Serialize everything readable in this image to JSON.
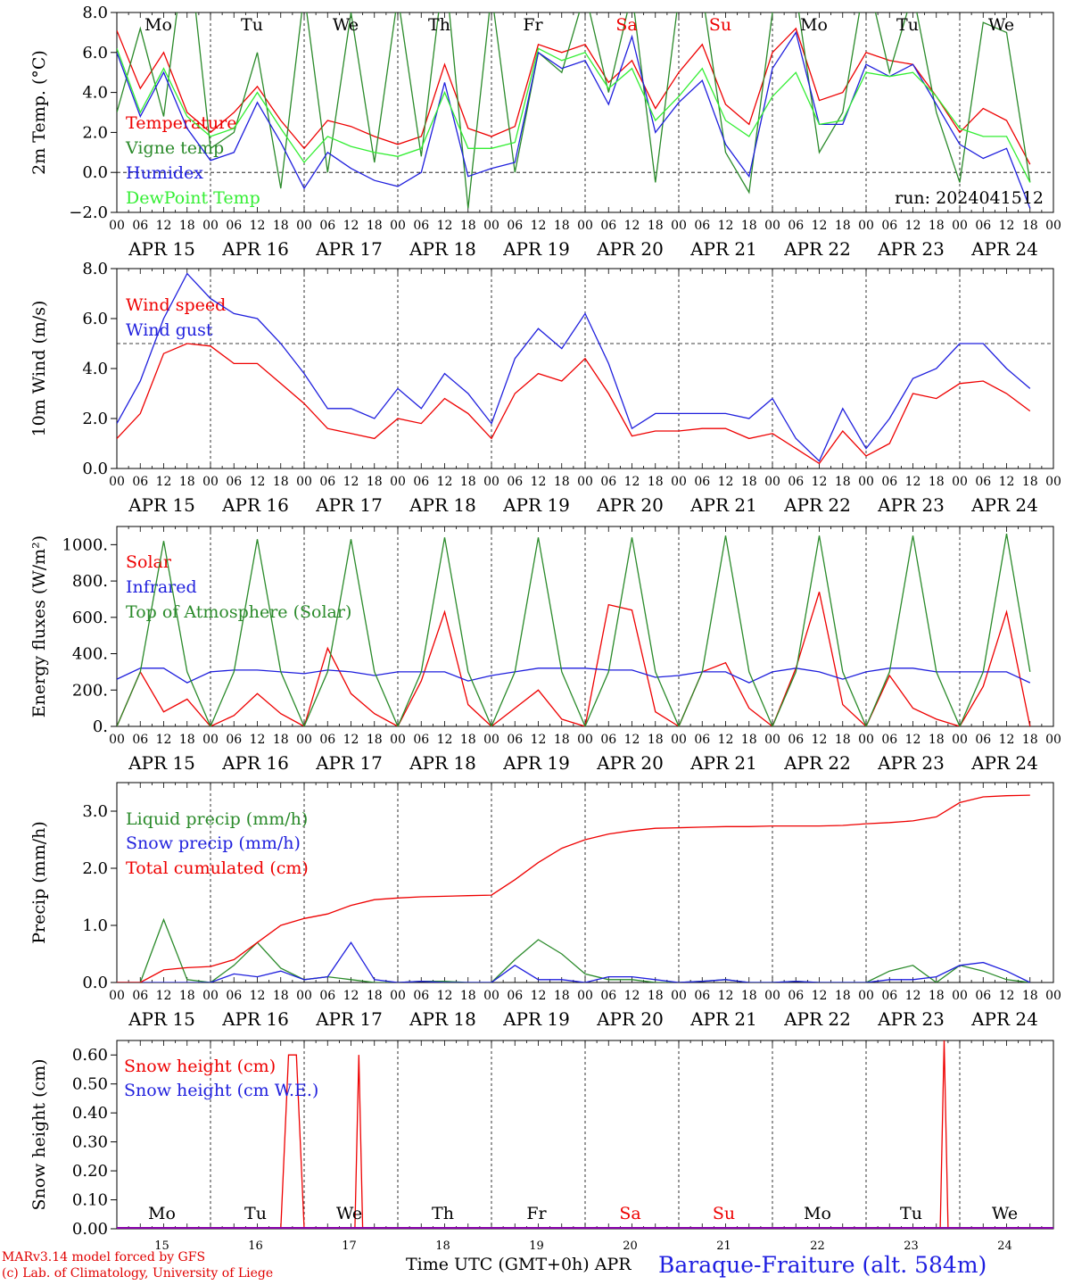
{
  "run_label": "run: 2024041512",
  "footer": {
    "credit_line1": "MARv3.14 model forced by GFS",
    "credit_line2": "(c) Lab. of Climatology, University of Liege",
    "x_title": "Time UTC (GMT+0h) APR",
    "station": "Baraque-Fraiture (alt. 584m)"
  },
  "colors": {
    "red": "#ee0000",
    "green": "#2a8a2a",
    "blue": "#1f1fdd",
    "lightgreen": "#33ee33",
    "purple": "#8800aa"
  },
  "days": [
    "APR 15",
    "APR 16",
    "APR 17",
    "APR 18",
    "APR 19",
    "APR 20",
    "APR 21",
    "APR 22",
    "APR 23",
    "APR 24"
  ],
  "day_numbers": [
    "15",
    "16",
    "17",
    "18",
    "19",
    "20",
    "21",
    "22",
    "23",
    "24"
  ],
  "weekdays": [
    {
      "label": "Mo",
      "color": "#000000"
    },
    {
      "label": "Tu",
      "color": "#000000"
    },
    {
      "label": "We",
      "color": "#000000"
    },
    {
      "label": "Th",
      "color": "#000000"
    },
    {
      "label": "Fr",
      "color": "#000000"
    },
    {
      "label": "Sa",
      "color": "#ee0000"
    },
    {
      "label": "Su",
      "color": "#ee0000"
    },
    {
      "label": "Mo",
      "color": "#000000"
    },
    {
      "label": "Tu",
      "color": "#000000"
    },
    {
      "label": "We",
      "color": "#000000"
    }
  ],
  "hour_ticks": [
    "00",
    "06",
    "12",
    "18"
  ],
  "chart_data": [
    {
      "type": "line",
      "ylabel": "2m Temp. (°C)",
      "ylim": [
        -2,
        8
      ],
      "yticks": [
        -2,
        0,
        2,
        4,
        6,
        8
      ],
      "ytick_labels": [
        "−2.0",
        "0.0",
        "2.0",
        "4.0",
        "6.0",
        "8.0"
      ],
      "ref_line": 0,
      "x_hours": [
        0,
        6,
        12,
        18,
        24,
        30,
        36,
        42,
        48,
        54,
        60,
        66,
        72,
        78,
        84,
        90,
        96,
        102,
        108,
        114,
        120,
        126,
        132,
        138,
        144,
        150,
        156,
        162,
        168,
        174,
        180,
        186,
        192,
        198,
        204,
        210,
        216,
        222,
        228,
        234
      ],
      "series": [
        {
          "name": "Temperature",
          "color": "#ee0000",
          "values": [
            7.1,
            4.2,
            6.0,
            3.0,
            2.0,
            3.0,
            4.3,
            2.6,
            1.2,
            2.6,
            2.3,
            1.8,
            1.4,
            1.8,
            5.4,
            2.2,
            1.8,
            2.3,
            6.4,
            6.0,
            6.4,
            4.5,
            5.6,
            3.2,
            5.0,
            6.4,
            3.4,
            2.4,
            6.0,
            7.2,
            3.6,
            4.0,
            6.0,
            5.6,
            5.4,
            3.8,
            2.0,
            3.2,
            2.6,
            0.4
          ]
        },
        {
          "name": "Vigne temp",
          "color": "#2a8a2a",
          "values": [
            3.0,
            7.2,
            2.8,
            12.0,
            1.2,
            2.0,
            6.0,
            -0.8,
            9.0,
            0.0,
            8.0,
            0.5,
            8.8,
            0.8,
            10.5,
            -1.8,
            9.0,
            0.0,
            6.0,
            5.0,
            9.0,
            4.0,
            9.0,
            -0.5,
            8.8,
            9.0,
            1.0,
            -1.0,
            8.0,
            9.0,
            1.0,
            3.0,
            10.0,
            5.0,
            9.0,
            3.0,
            -0.5,
            7.5,
            7.0,
            -0.5
          ]
        },
        {
          "name": "Humidex",
          "color": "#1f1fdd",
          "values": [
            6.0,
            2.8,
            5.0,
            2.2,
            0.6,
            1.0,
            3.5,
            1.5,
            -0.8,
            1.0,
            0.2,
            -0.4,
            -0.7,
            0.0,
            4.5,
            -0.2,
            0.2,
            0.5,
            6.0,
            5.2,
            5.6,
            3.4,
            6.8,
            2.0,
            3.5,
            4.6,
            1.4,
            -0.2,
            5.2,
            7.0,
            2.4,
            2.4,
            5.4,
            4.8,
            5.4,
            3.4,
            1.4,
            0.7,
            1.2,
            -1.8
          ]
        },
        {
          "name": "DewPoint Temp",
          "color": "#33ee33",
          "values": [
            6.2,
            3.0,
            5.2,
            2.8,
            1.8,
            2.2,
            4.0,
            2.2,
            0.5,
            1.8,
            1.3,
            1.0,
            0.8,
            1.2,
            4.0,
            1.2,
            1.2,
            1.5,
            6.2,
            5.6,
            6.0,
            4.2,
            5.2,
            2.6,
            3.8,
            5.2,
            2.6,
            1.8,
            3.8,
            5.0,
            2.4,
            2.6,
            5.0,
            4.8,
            5.0,
            3.8,
            2.2,
            1.8,
            1.8,
            -0.5
          ]
        }
      ]
    },
    {
      "type": "line",
      "ylabel": "10m Wind (m/s)",
      "ylim": [
        0,
        8
      ],
      "yticks": [
        0,
        2,
        4,
        6,
        8
      ],
      "ytick_labels": [
        "0.0",
        "2.0",
        "4.0",
        "6.0",
        "8.0"
      ],
      "ref_line": 5,
      "x_hours": [
        0,
        6,
        12,
        18,
        24,
        30,
        36,
        42,
        48,
        54,
        60,
        66,
        72,
        78,
        84,
        90,
        96,
        102,
        108,
        114,
        120,
        126,
        132,
        138,
        144,
        150,
        156,
        162,
        168,
        174,
        180,
        186,
        192,
        198,
        204,
        210,
        216,
        222,
        228,
        234
      ],
      "series": [
        {
          "name": "Wind speed",
          "color": "#ee0000",
          "values": [
            1.2,
            2.2,
            4.6,
            5.0,
            4.9,
            4.2,
            4.2,
            3.4,
            2.6,
            1.6,
            1.4,
            1.2,
            2.0,
            1.8,
            2.8,
            2.2,
            1.2,
            3.0,
            3.8,
            3.5,
            4.4,
            3.0,
            1.3,
            1.5,
            1.5,
            1.6,
            1.6,
            1.2,
            1.4,
            0.8,
            0.2,
            1.5,
            0.5,
            1.0,
            3.0,
            2.8,
            3.4,
            3.5,
            3.0,
            2.3
          ]
        },
        {
          "name": "Wind gust",
          "color": "#1f1fdd",
          "values": [
            1.8,
            3.5,
            6.0,
            7.8,
            6.8,
            6.2,
            6.0,
            5.0,
            3.8,
            2.4,
            2.4,
            2.0,
            3.2,
            2.4,
            3.8,
            3.0,
            1.8,
            4.4,
            5.6,
            4.8,
            6.2,
            4.2,
            1.6,
            2.2,
            2.2,
            2.2,
            2.2,
            2.0,
            2.8,
            1.2,
            0.3,
            2.4,
            0.8,
            2.0,
            3.6,
            4.0,
            5.0,
            5.0,
            4.0,
            3.2
          ]
        }
      ]
    },
    {
      "type": "line",
      "ylabel": "Energy fluxes (W/m²)",
      "ylim": [
        0,
        1100
      ],
      "yticks": [
        0,
        200,
        400,
        600,
        800,
        1000
      ],
      "ytick_labels": [
        "0.",
        "200.",
        "400.",
        "600.",
        "800.",
        "1000."
      ],
      "x_hours": [
        0,
        6,
        12,
        18,
        24,
        30,
        36,
        42,
        48,
        54,
        60,
        66,
        72,
        78,
        84,
        90,
        96,
        102,
        108,
        114,
        120,
        126,
        132,
        138,
        144,
        150,
        156,
        162,
        168,
        174,
        180,
        186,
        192,
        198,
        204,
        210,
        216,
        222,
        228,
        234
      ],
      "series": [
        {
          "name": "Solar",
          "color": "#ee0000",
          "values": [
            0,
            300,
            80,
            150,
            0,
            60,
            180,
            70,
            0,
            430,
            180,
            70,
            0,
            250,
            630,
            120,
            0,
            100,
            200,
            40,
            0,
            670,
            640,
            80,
            0,
            300,
            350,
            100,
            0,
            320,
            740,
            120,
            0,
            280,
            100,
            40,
            0,
            220,
            630,
            0
          ]
        },
        {
          "name": "Infrared",
          "color": "#1f1fdd",
          "values": [
            260,
            320,
            320,
            240,
            300,
            310,
            310,
            300,
            290,
            310,
            300,
            280,
            300,
            300,
            300,
            250,
            280,
            300,
            320,
            320,
            320,
            310,
            310,
            270,
            280,
            300,
            300,
            240,
            300,
            320,
            300,
            260,
            300,
            320,
            320,
            300,
            300,
            300,
            300,
            240
          ]
        },
        {
          "name": "Top of Atmosphere (Solar)",
          "color": "#2a8a2a",
          "values": [
            0,
            300,
            1020,
            300,
            0,
            300,
            1030,
            300,
            0,
            300,
            1030,
            300,
            0,
            300,
            1040,
            300,
            0,
            300,
            1040,
            300,
            0,
            300,
            1040,
            300,
            0,
            300,
            1050,
            300,
            0,
            300,
            1050,
            300,
            0,
            300,
            1050,
            300,
            0,
            300,
            1060,
            300
          ]
        }
      ]
    },
    {
      "type": "line",
      "ylabel": "Precip (mm/h)",
      "ylim": [
        0,
        3.5
      ],
      "yticks": [
        0,
        1,
        2,
        3
      ],
      "ytick_labels": [
        "0.0",
        "1.0",
        "2.0",
        "3.0"
      ],
      "x_hours": [
        0,
        6,
        12,
        18,
        24,
        30,
        36,
        42,
        48,
        54,
        60,
        66,
        72,
        78,
        84,
        90,
        96,
        102,
        108,
        114,
        120,
        126,
        132,
        138,
        144,
        150,
        156,
        162,
        168,
        174,
        180,
        186,
        192,
        198,
        204,
        210,
        216,
        222,
        228,
        234
      ],
      "series": [
        {
          "name": "Liquid precip (mm/h)",
          "color": "#2a8a2a",
          "values": [
            0,
            0,
            1.1,
            0.05,
            0,
            0.3,
            0.7,
            0.25,
            0.05,
            0.1,
            0.05,
            0.0,
            0,
            0.02,
            0.02,
            0,
            0,
            0.4,
            0.75,
            0.5,
            0.15,
            0.05,
            0.05,
            0,
            0,
            0.02,
            0.05,
            0,
            0,
            0.02,
            0,
            0,
            0,
            0.2,
            0.3,
            0,
            0.3,
            0.2,
            0.05,
            0
          ]
        },
        {
          "name": "Snow precip (mm/h)",
          "color": "#1f1fdd",
          "values": [
            0,
            0,
            0,
            0,
            0,
            0.15,
            0.1,
            0.2,
            0.05,
            0.1,
            0.7,
            0.05,
            0,
            0.02,
            0,
            0,
            0,
            0.3,
            0.05,
            0.05,
            0,
            0.1,
            0.1,
            0.05,
            0,
            0.02,
            0.05,
            0,
            0,
            0.02,
            0,
            0,
            0,
            0.05,
            0.05,
            0.1,
            0.3,
            0.35,
            0.2,
            0
          ]
        },
        {
          "name": "Total cumulated (cm)",
          "color": "#ee0000",
          "values": [
            0,
            0,
            0.22,
            0.26,
            0.28,
            0.4,
            0.7,
            1.0,
            1.12,
            1.2,
            1.35,
            1.45,
            1.48,
            1.5,
            1.51,
            1.52,
            1.53,
            1.8,
            2.1,
            2.35,
            2.5,
            2.6,
            2.66,
            2.7,
            2.71,
            2.72,
            2.73,
            2.73,
            2.74,
            2.74,
            2.74,
            2.75,
            2.78,
            2.8,
            2.83,
            2.9,
            3.15,
            3.25,
            3.27,
            3.28
          ]
        }
      ]
    },
    {
      "type": "line",
      "ylabel": "Snow height (cm)",
      "ylim": [
        0,
        0.65
      ],
      "yticks": [
        0,
        0.1,
        0.2,
        0.3,
        0.4,
        0.5,
        0.6
      ],
      "ytick_labels": [
        "0.00",
        "0.10",
        "0.20",
        "0.30",
        "0.40",
        "0.50",
        "0.60"
      ],
      "x_hours": [
        0,
        42,
        44,
        46,
        48,
        60,
        61,
        62,
        63,
        64,
        210,
        211,
        212,
        213,
        214,
        240
      ],
      "series": [
        {
          "name": "Snow height (cm)",
          "color": "#ee0000",
          "values": [
            0,
            0,
            0.6,
            0.6,
            0,
            0,
            0,
            0.6,
            0,
            0,
            0,
            0,
            0.65,
            0,
            0,
            0
          ]
        },
        {
          "name": "Snow height (cm W.E.)",
          "color": "#1f1fdd",
          "values": [
            0,
            0,
            0,
            0,
            0,
            0,
            0,
            0,
            0,
            0,
            0,
            0,
            0,
            0,
            0,
            0
          ]
        }
      ]
    }
  ]
}
